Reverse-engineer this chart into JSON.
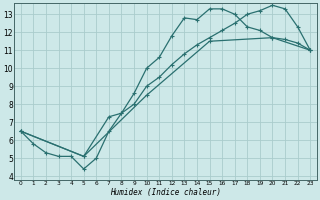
{
  "xlabel": "Humidex (Indice chaleur)",
  "bg_color": "#cde8e8",
  "grid_color": "#aacccc",
  "line_color": "#2a7070",
  "xlim": [
    -0.5,
    23.5
  ],
  "ylim": [
    3.8,
    13.6
  ],
  "xticks": [
    0,
    1,
    2,
    3,
    4,
    5,
    6,
    7,
    8,
    9,
    10,
    11,
    12,
    13,
    14,
    15,
    16,
    17,
    18,
    19,
    20,
    21,
    22,
    23
  ],
  "yticks": [
    4,
    5,
    6,
    7,
    8,
    9,
    10,
    11,
    12,
    13
  ],
  "line1_x": [
    0,
    1,
    2,
    3,
    4,
    5,
    6,
    7,
    8,
    9,
    10,
    11,
    12,
    13,
    14,
    15,
    16,
    17,
    18,
    19,
    20,
    21,
    22,
    23
  ],
  "line1_y": [
    6.5,
    5.8,
    5.3,
    5.1,
    5.1,
    4.4,
    5.0,
    6.5,
    7.5,
    8.6,
    10.0,
    10.6,
    11.8,
    12.8,
    12.7,
    13.3,
    13.3,
    13.0,
    12.3,
    12.1,
    11.7,
    11.6,
    11.4,
    11.0
  ],
  "line2_x": [
    0,
    5,
    7,
    8,
    9,
    10,
    11,
    12,
    13,
    14,
    15,
    16,
    17,
    18,
    19,
    20,
    21,
    22,
    23
  ],
  "line2_y": [
    6.5,
    5.1,
    7.3,
    7.5,
    8.0,
    9.0,
    9.5,
    10.2,
    10.8,
    11.3,
    11.7,
    12.1,
    12.5,
    13.0,
    13.2,
    13.5,
    13.3,
    12.3,
    11.0
  ],
  "line3_x": [
    0,
    5,
    10,
    15,
    20,
    23
  ],
  "line3_y": [
    6.5,
    5.1,
    8.5,
    11.5,
    11.7,
    11.0
  ]
}
